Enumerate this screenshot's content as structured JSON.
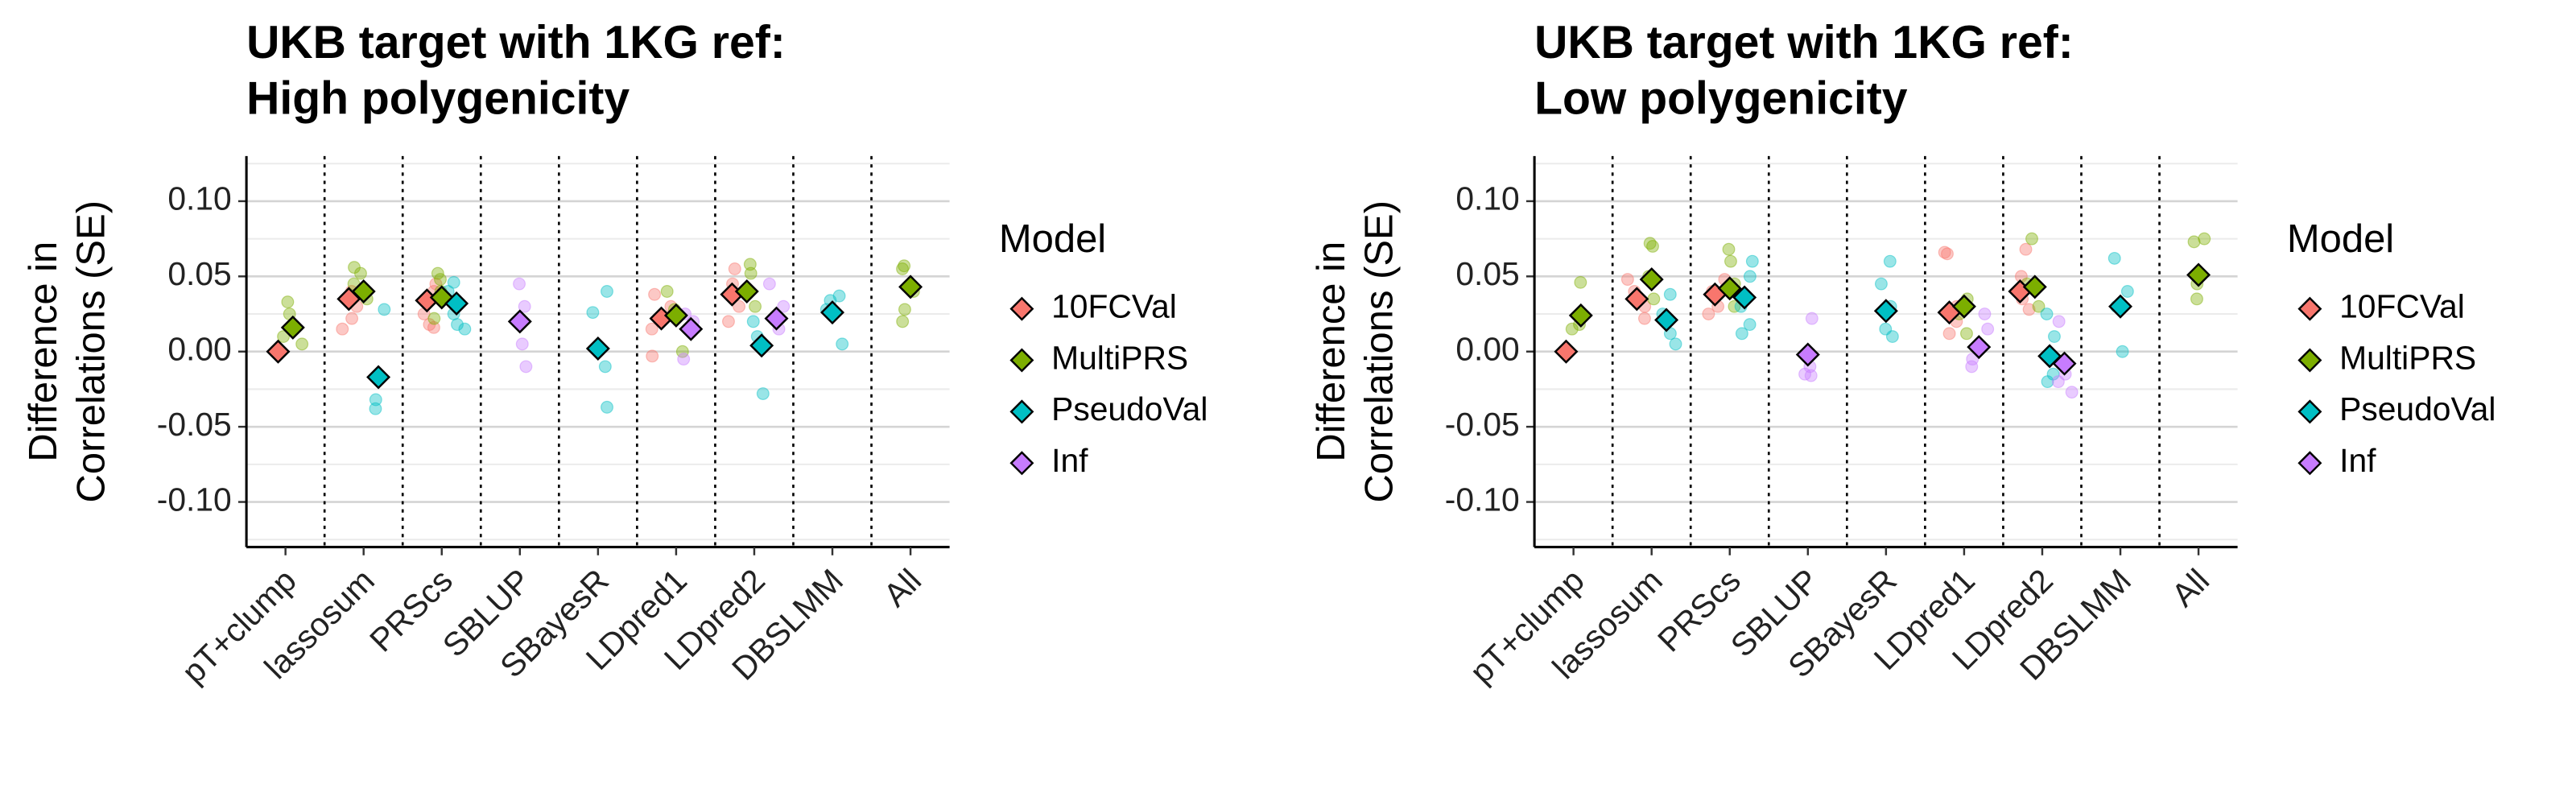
{
  "chart_data": [
    {
      "type": "scatter",
      "title": [
        "UKB target with 1KG ref:",
        "High polygenicity"
      ],
      "y_label": [
        "Difference in",
        "Correlations (SE)"
      ],
      "legend_title": "Model",
      "legend": "right",
      "grid": true,
      "categories": [
        "pT+clump",
        "lassosum",
        "PRScs",
        "SBLUP",
        "SBayesR",
        "LDpred1",
        "LDpred2",
        "DBSLMM",
        "All"
      ],
      "ylim": [
        -0.13,
        0.13
      ],
      "yticks": [
        {
          "value": -0.1,
          "label": "-0.10"
        },
        -0.05,
        {
          "value": 0,
          "label": "0.00"
        },
        0.05,
        {
          "value": 0.1,
          "label": "0.10"
        }
      ],
      "minor_yticks": [
        -0.125,
        -0.075,
        -0.025,
        0.025,
        0.075,
        0.125
      ],
      "series": [
        {
          "name": "10FCVal",
          "color": "#F8766D",
          "values": [
            0.0,
            0.035,
            0.034,
            null,
            null,
            0.022,
            0.038,
            null,
            null
          ],
          "points": [
            null,
            [
              0.04,
              0.03,
              0.022,
              0.015
            ],
            [
              0.045,
              0.04,
              0.025,
              0.018,
              0.016
            ],
            null,
            null,
            [
              0.038,
              0.03,
              0.015,
              -0.003
            ],
            [
              0.055,
              0.045,
              0.03,
              0.02
            ],
            null,
            null
          ]
        },
        {
          "name": "MultiPRS",
          "color": "#7CAE00",
          "values": [
            0.016,
            0.04,
            0.036,
            null,
            null,
            0.024,
            0.04,
            null,
            0.043
          ],
          "points": [
            [
              0.033,
              0.025,
              0.01,
              0.005
            ],
            [
              0.056,
              0.052,
              0.045,
              0.035
            ],
            [
              0.052,
              0.048,
              0.04,
              0.022
            ],
            null,
            null,
            [
              0.04,
              0.028,
              0.0
            ],
            [
              0.058,
              0.052,
              0.03
            ],
            null,
            [
              0.057,
              0.055,
              0.04,
              0.028,
              0.02
            ]
          ]
        },
        {
          "name": "PseudoVal",
          "color": "#00BFC4",
          "values": [
            null,
            -0.017,
            0.032,
            null,
            0.002,
            null,
            0.004,
            0.026,
            null
          ],
          "points": [
            null,
            [
              0.028,
              -0.032,
              -0.038
            ],
            [
              0.046,
              0.04,
              0.025,
              0.018,
              0.015
            ],
            null,
            [
              0.04,
              0.026,
              -0.01,
              -0.037
            ],
            null,
            [
              0.02,
              0.01,
              -0.028
            ],
            [
              0.037,
              0.034,
              0.028,
              0.005
            ],
            null
          ]
        },
        {
          "name": "Inf",
          "color": "#C77CFF",
          "values": [
            null,
            null,
            null,
            0.02,
            null,
            0.015,
            0.022,
            null,
            null
          ],
          "points": [
            null,
            null,
            null,
            [
              0.045,
              0.03,
              0.005,
              -0.01
            ],
            null,
            [
              0.025,
              0.02,
              -0.005
            ],
            [
              0.045,
              0.03,
              0.015
            ],
            null,
            null
          ]
        }
      ]
    },
    {
      "type": "scatter",
      "title": [
        "UKB target with 1KG ref:",
        "Low polygenicity"
      ],
      "y_label": [
        "Difference in",
        "Correlations (SE)"
      ],
      "legend_title": "Model",
      "legend": "right",
      "grid": true,
      "categories": [
        "pT+clump",
        "lassosum",
        "PRScs",
        "SBLUP",
        "SBayesR",
        "LDpred1",
        "LDpred2",
        "DBSLMM",
        "All"
      ],
      "ylim": [
        -0.13,
        0.13
      ],
      "yticks": [
        {
          "value": -0.1,
          "label": "-0.10"
        },
        -0.05,
        {
          "value": 0,
          "label": "0.00"
        },
        0.05,
        {
          "value": 0.1,
          "label": "0.10"
        }
      ],
      "minor_yticks": [
        -0.125,
        -0.075,
        -0.025,
        0.025,
        0.075,
        0.125
      ],
      "series": [
        {
          "name": "10FCVal",
          "color": "#F8766D",
          "values": [
            0.0,
            0.035,
            0.038,
            null,
            null,
            0.026,
            0.04,
            null,
            null
          ],
          "points": [
            null,
            [
              0.048,
              0.04,
              0.03,
              0.022
            ],
            [
              0.048,
              0.04,
              0.03,
              0.025
            ],
            null,
            null,
            [
              0.066,
              0.065,
              0.03,
              0.02,
              0.012
            ],
            [
              0.068,
              0.05,
              0.035,
              0.028
            ],
            null,
            null
          ]
        },
        {
          "name": "MultiPRS",
          "color": "#7CAE00",
          "values": [
            0.024,
            0.048,
            0.042,
            null,
            null,
            0.03,
            0.043,
            null,
            0.051
          ],
          "points": [
            [
              0.046,
              0.025,
              0.018,
              0.015
            ],
            [
              0.072,
              0.07,
              0.05,
              0.035
            ],
            [
              0.068,
              0.06,
              0.045,
              0.03
            ],
            null,
            null,
            [
              0.035,
              0.025,
              0.012
            ],
            [
              0.075,
              0.045,
              0.03
            ],
            null,
            [
              0.075,
              0.073,
              0.045,
              0.035
            ]
          ]
        },
        {
          "name": "PseudoVal",
          "color": "#00BFC4",
          "values": [
            null,
            0.021,
            0.036,
            null,
            0.027,
            null,
            -0.003,
            0.03,
            null
          ],
          "points": [
            null,
            [
              0.038,
              0.025,
              0.012,
              0.005
            ],
            [
              0.06,
              0.05,
              0.03,
              0.018,
              0.012
            ],
            null,
            [
              0.06,
              0.045,
              0.03,
              0.015,
              0.01
            ],
            null,
            [
              0.025,
              0.01,
              -0.015,
              -0.02
            ],
            [
              0.062,
              0.04,
              0.03,
              0.0
            ],
            null
          ]
        },
        {
          "name": "Inf",
          "color": "#C77CFF",
          "values": [
            null,
            null,
            null,
            -0.002,
            null,
            0.003,
            -0.008,
            null,
            null
          ],
          "points": [
            null,
            null,
            null,
            [
              0.022,
              -0.01,
              -0.015,
              -0.016
            ],
            null,
            [
              0.025,
              0.015,
              -0.005,
              -0.01
            ],
            [
              0.02,
              -0.015,
              -0.02,
              -0.027
            ],
            null,
            null
          ]
        }
      ]
    }
  ]
}
